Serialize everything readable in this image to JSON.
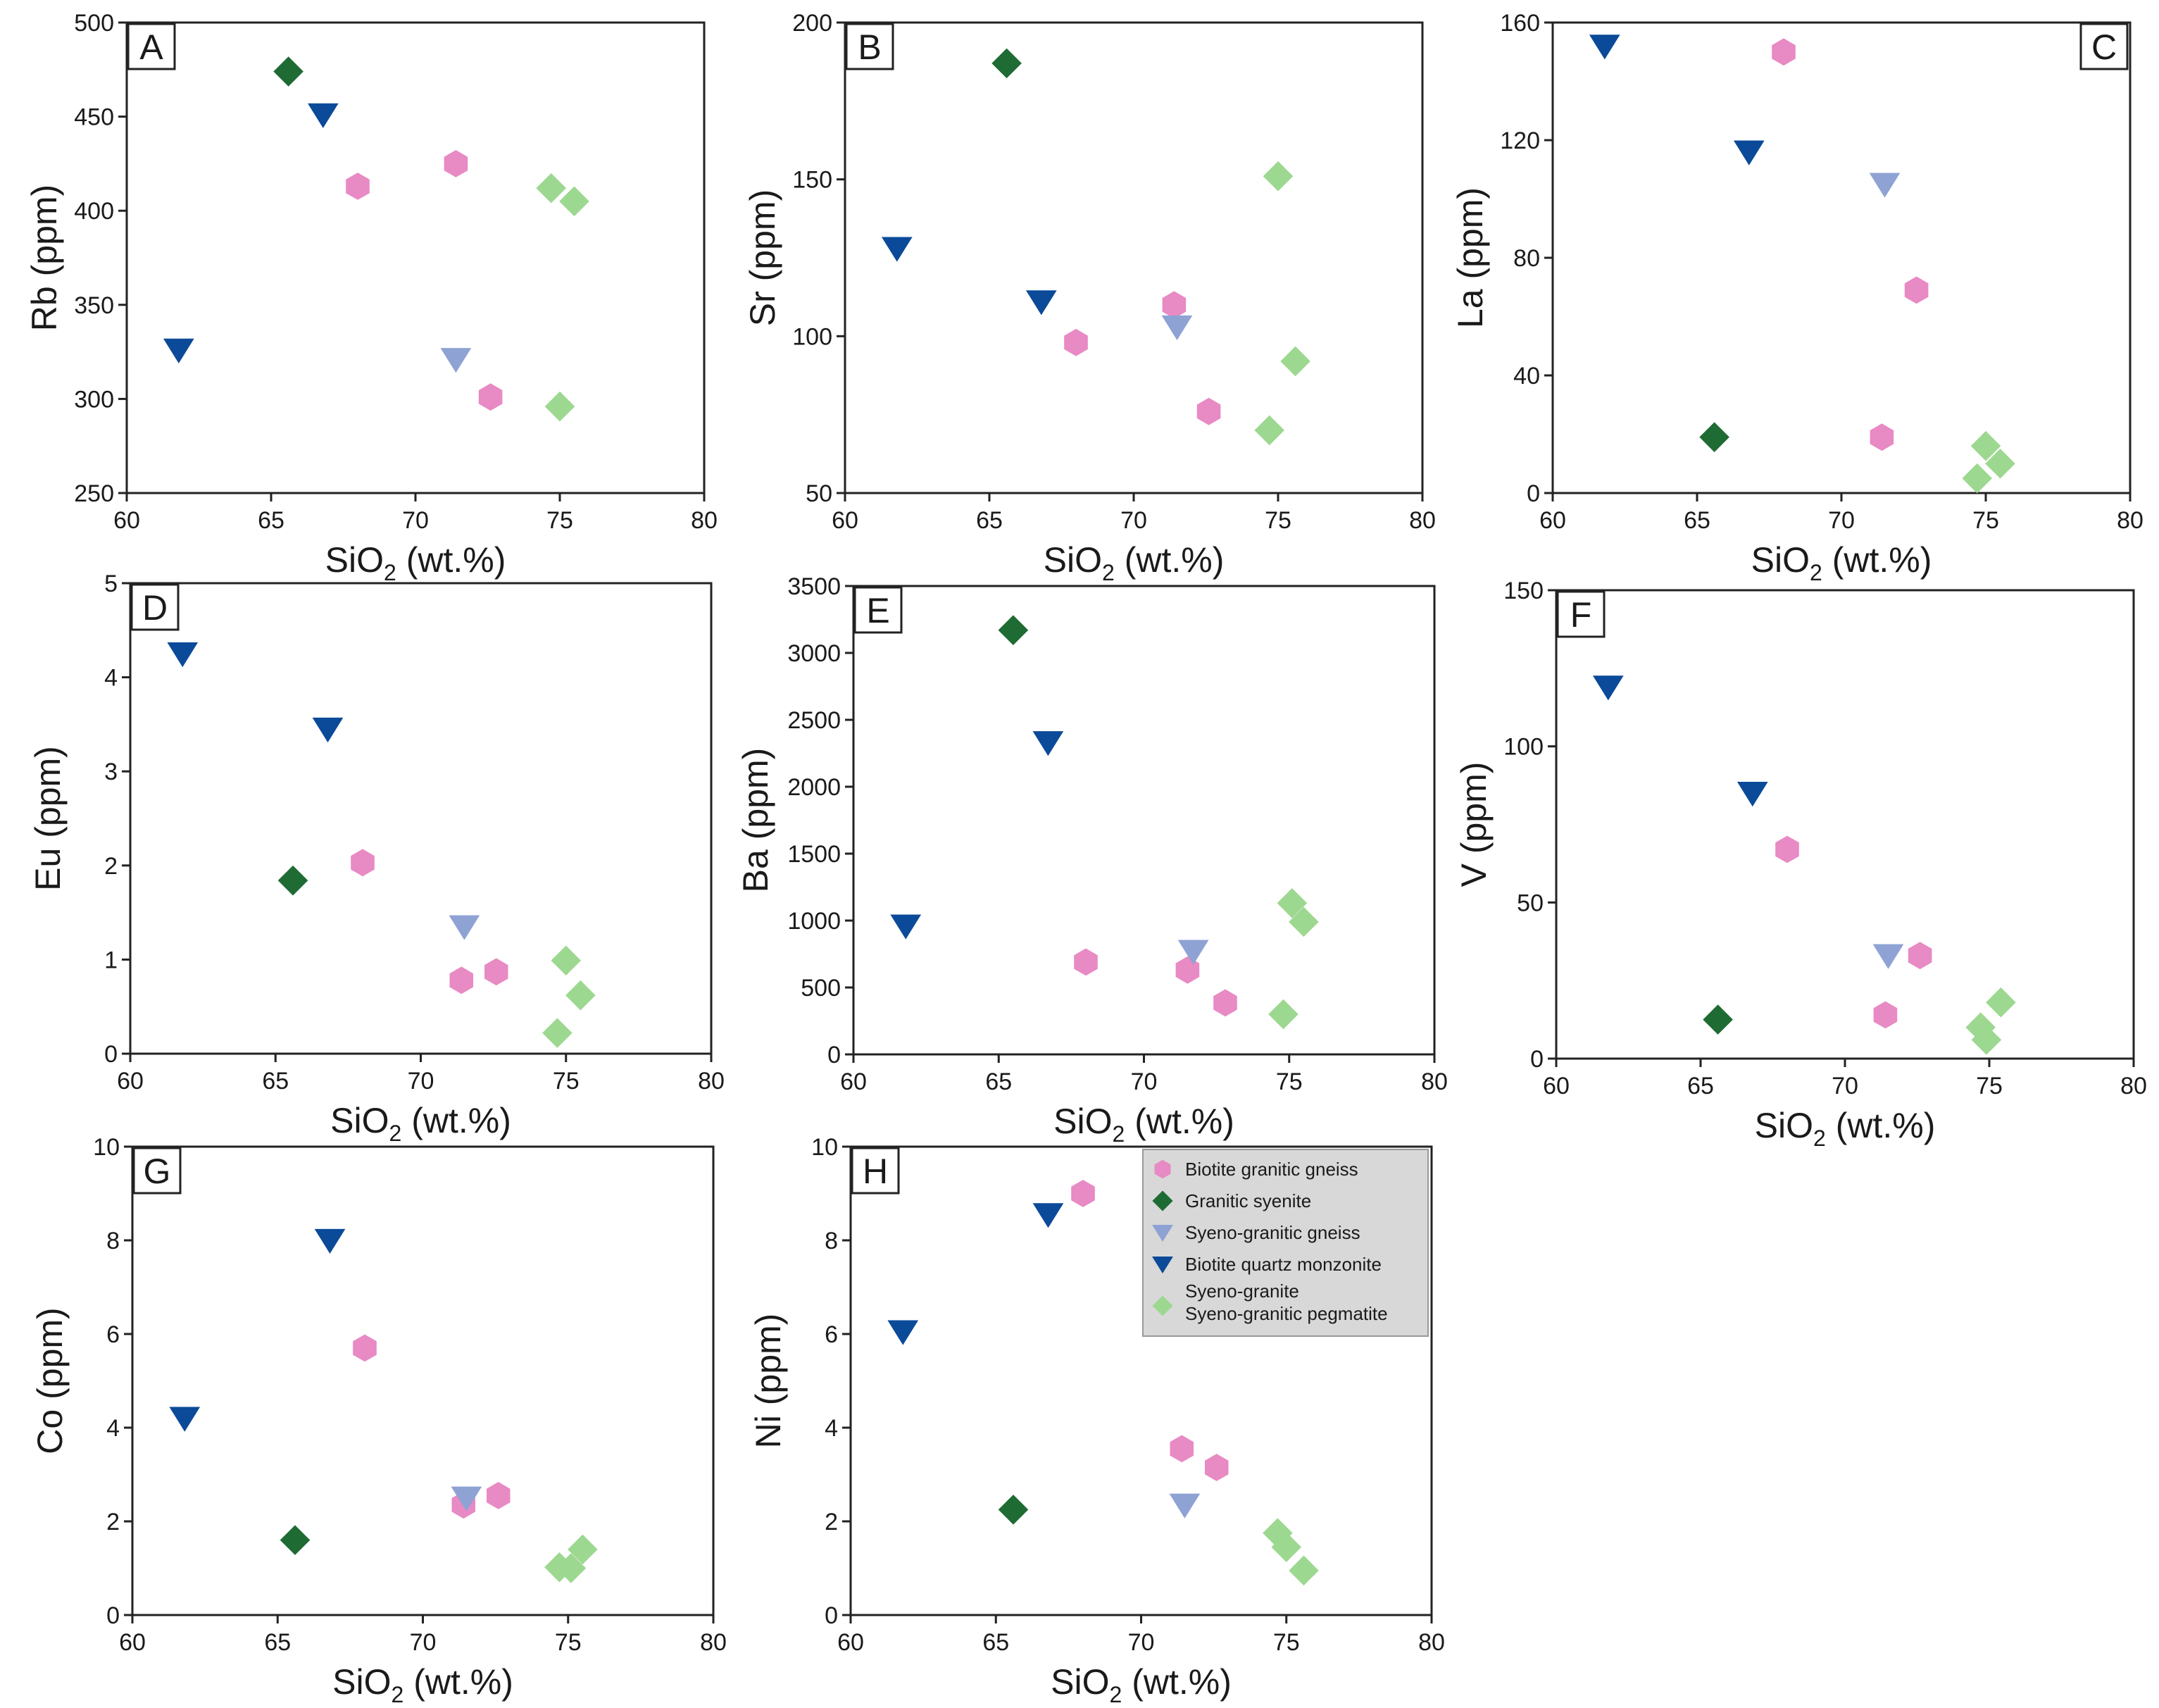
{
  "colors": {
    "biotite_granitic_gneiss": "#e88ac4",
    "granitic_syenite": "#1e6b33",
    "syeno_granitic_gneiss": "#8fa2d4",
    "biotite_quartz_monzonite": "#0b4a99",
    "syeno_granite": "#9dd890"
  },
  "legend": {
    "items": [
      {
        "key": "biotite_granitic_gneiss",
        "marker": "hexagon",
        "lines": [
          "Biotite granitic gneiss"
        ]
      },
      {
        "key": "granitic_syenite",
        "marker": "diamond",
        "lines": [
          "Granitic syenite"
        ]
      },
      {
        "key": "syeno_granitic_gneiss",
        "marker": "triangle-down",
        "lines": [
          "Syeno-granitic gneiss"
        ]
      },
      {
        "key": "biotite_quartz_monzonite",
        "marker": "triangle-down",
        "lines": [
          "Biotite quartz monzonite"
        ]
      },
      {
        "key": "syeno_granite",
        "marker": "diamond",
        "lines": [
          "Syeno-granite",
          "Syeno-granitic pegmatite"
        ]
      }
    ]
  },
  "chart_data": [
    {
      "panel": "A",
      "type": "scatter",
      "xlabel": "SiO2 (wt.%)",
      "ylabel": "Rb (ppm)",
      "xlim": [
        60,
        80
      ],
      "ylim": [
        250,
        500
      ],
      "xticks": [
        60,
        65,
        70,
        75,
        80
      ],
      "yticks": [
        250,
        300,
        350,
        400,
        450,
        500
      ],
      "series": [
        {
          "key": "biotite_granitic_gneiss",
          "points": [
            [
              68,
              413
            ],
            [
              71.4,
              425
            ],
            [
              72.6,
              301
            ]
          ]
        },
        {
          "key": "granitic_syenite",
          "points": [
            [
              65.6,
              474
            ]
          ]
        },
        {
          "key": "syeno_granitic_gneiss",
          "points": [
            [
              71.4,
              321
            ]
          ]
        },
        {
          "key": "biotite_quartz_monzonite",
          "points": [
            [
              61.8,
              326
            ],
            [
              66.8,
              451
            ]
          ]
        },
        {
          "key": "syeno_granite",
          "points": [
            [
              74.7,
              412
            ],
            [
              75.5,
              405
            ],
            [
              75,
              296
            ]
          ]
        }
      ]
    },
    {
      "panel": "B",
      "type": "scatter",
      "xlabel": "SiO2 (wt.%)",
      "ylabel": "Sr (ppm)",
      "xlim": [
        60,
        80
      ],
      "ylim": [
        50,
        200
      ],
      "xticks": [
        60,
        65,
        70,
        75,
        80
      ],
      "yticks": [
        50,
        100,
        150,
        200
      ],
      "series": [
        {
          "key": "biotite_granitic_gneiss",
          "points": [
            [
              68,
              98
            ],
            [
              71.4,
              110
            ],
            [
              72.6,
              76
            ]
          ]
        },
        {
          "key": "granitic_syenite",
          "points": [
            [
              65.6,
              187
            ]
          ]
        },
        {
          "key": "syeno_granitic_gneiss",
          "points": [
            [
              71.5,
              103
            ]
          ]
        },
        {
          "key": "biotite_quartz_monzonite",
          "points": [
            [
              61.8,
              128
            ],
            [
              66.8,
              111
            ]
          ]
        },
        {
          "key": "syeno_granite",
          "points": [
            [
              75,
              151
            ],
            [
              75.6,
              92
            ],
            [
              74.7,
              70
            ]
          ]
        }
      ]
    },
    {
      "panel": "C",
      "type": "scatter",
      "xlabel": "SiO2 (wt.%)",
      "ylabel": "La (ppm)",
      "xlim": [
        60,
        80
      ],
      "ylim": [
        0,
        160
      ],
      "xticks": [
        60,
        65,
        70,
        75,
        80
      ],
      "yticks": [
        0,
        40,
        80,
        120,
        160
      ],
      "series": [
        {
          "key": "biotite_granitic_gneiss",
          "points": [
            [
              68,
              150
            ],
            [
              72.6,
              69
            ],
            [
              71.4,
              19
            ]
          ]
        },
        {
          "key": "granitic_syenite",
          "points": [
            [
              65.6,
              19
            ]
          ]
        },
        {
          "key": "syeno_granitic_gneiss",
          "points": [
            [
              71.5,
              105
            ]
          ]
        },
        {
          "key": "biotite_quartz_monzonite",
          "points": [
            [
              61.8,
              152
            ],
            [
              66.8,
              116
            ]
          ]
        },
        {
          "key": "syeno_granite",
          "points": [
            [
              75,
              16
            ],
            [
              75.5,
              10
            ],
            [
              74.7,
              5
            ]
          ]
        }
      ]
    },
    {
      "panel": "D",
      "type": "scatter",
      "xlabel": "SiO2 (wt.%)",
      "ylabel": "Eu (ppm)",
      "xlim": [
        60,
        80
      ],
      "ylim": [
        0,
        5
      ],
      "xticks": [
        60,
        65,
        70,
        75,
        80
      ],
      "yticks": [
        0,
        1,
        2,
        3,
        4,
        5
      ],
      "series": [
        {
          "key": "biotite_granitic_gneiss",
          "points": [
            [
              68,
              2.03
            ],
            [
              71.4,
              0.78
            ],
            [
              72.6,
              0.87
            ]
          ]
        },
        {
          "key": "granitic_syenite",
          "points": [
            [
              65.6,
              1.84
            ]
          ]
        },
        {
          "key": "syeno_granitic_gneiss",
          "points": [
            [
              71.5,
              1.35
            ]
          ]
        },
        {
          "key": "biotite_quartz_monzonite",
          "points": [
            [
              61.8,
              4.25
            ],
            [
              66.8,
              3.45
            ]
          ]
        },
        {
          "key": "syeno_granite",
          "points": [
            [
              75,
              0.99
            ],
            [
              75.5,
              0.62
            ],
            [
              74.7,
              0.22
            ]
          ]
        }
      ]
    },
    {
      "panel": "E",
      "type": "scatter",
      "xlabel": "SiO2 (wt.%)",
      "ylabel": "Ba (ppm)",
      "xlim": [
        60,
        80
      ],
      "ylim": [
        0,
        3500
      ],
      "xticks": [
        60,
        65,
        70,
        75,
        80
      ],
      "yticks": [
        0,
        500,
        1000,
        1500,
        2000,
        2500,
        3000,
        3500
      ],
      "series": [
        {
          "key": "biotite_granitic_gneiss",
          "points": [
            [
              68,
              690
            ],
            [
              71.5,
              630
            ],
            [
              72.8,
              385
            ]
          ]
        },
        {
          "key": "granitic_syenite",
          "points": [
            [
              65.5,
              3170
            ]
          ]
        },
        {
          "key": "syeno_granitic_gneiss",
          "points": [
            [
              71.7,
              770
            ]
          ]
        },
        {
          "key": "biotite_quartz_monzonite",
          "points": [
            [
              61.8,
              960
            ],
            [
              66.7,
              2330
            ]
          ]
        },
        {
          "key": "syeno_granite",
          "points": [
            [
              75.1,
              1130
            ],
            [
              75.5,
              990
            ],
            [
              74.8,
              300
            ]
          ]
        }
      ]
    },
    {
      "panel": "F",
      "type": "scatter",
      "xlabel": "SiO2 (wt.%)",
      "ylabel": "V (ppm)",
      "xlim": [
        60,
        80
      ],
      "ylim": [
        0,
        150
      ],
      "xticks": [
        60,
        65,
        70,
        75,
        80
      ],
      "yticks": [
        0,
        50,
        100,
        150
      ],
      "series": [
        {
          "key": "biotite_granitic_gneiss",
          "points": [
            [
              68,
              67
            ],
            [
              72.6,
              33
            ],
            [
              71.4,
              14
            ]
          ]
        },
        {
          "key": "granitic_syenite",
          "points": [
            [
              65.6,
              12.5
            ]
          ]
        },
        {
          "key": "syeno_granitic_gneiss",
          "points": [
            [
              71.5,
              33
            ]
          ]
        },
        {
          "key": "biotite_quartz_monzonite",
          "points": [
            [
              61.8,
              119
            ],
            [
              66.8,
              85
            ]
          ]
        },
        {
          "key": "syeno_granite",
          "points": [
            [
              75.4,
              18
            ],
            [
              74.7,
              10
            ],
            [
              74.9,
              6
            ]
          ]
        }
      ]
    },
    {
      "panel": "G",
      "type": "scatter",
      "xlabel": "SiO2 (wt.%)",
      "ylabel": "Co (ppm)",
      "xlim": [
        60,
        80
      ],
      "ylim": [
        0,
        10
      ],
      "xticks": [
        60,
        65,
        70,
        75,
        80
      ],
      "yticks": [
        0,
        2,
        4,
        6,
        8,
        10
      ],
      "series": [
        {
          "key": "biotite_granitic_gneiss",
          "points": [
            [
              68,
              5.7
            ],
            [
              71.4,
              2.35
            ],
            [
              72.6,
              2.55
            ]
          ]
        },
        {
          "key": "granitic_syenite",
          "points": [
            [
              65.6,
              1.6
            ]
          ]
        },
        {
          "key": "syeno_granitic_gneiss",
          "points": [
            [
              71.5,
              2.5
            ]
          ]
        },
        {
          "key": "biotite_quartz_monzonite",
          "points": [
            [
              61.8,
              4.2
            ],
            [
              66.8,
              8.0
            ]
          ]
        },
        {
          "key": "syeno_granite",
          "points": [
            [
              75.5,
              1.4
            ],
            [
              74.7,
              1.02
            ],
            [
              75.1,
              1.0
            ]
          ]
        }
      ]
    },
    {
      "panel": "H",
      "type": "scatter",
      "xlabel": "SiO2 (wt.%)",
      "ylabel": "Ni (ppm)",
      "xlim": [
        60,
        80
      ],
      "ylim": [
        0,
        10
      ],
      "xticks": [
        60,
        65,
        70,
        75,
        80
      ],
      "yticks": [
        0,
        2,
        4,
        6,
        8,
        10
      ],
      "series": [
        {
          "key": "biotite_granitic_gneiss",
          "points": [
            [
              68,
              9.0
            ],
            [
              71.4,
              3.55
            ],
            [
              72.6,
              3.15
            ]
          ]
        },
        {
          "key": "granitic_syenite",
          "points": [
            [
              65.6,
              2.25
            ]
          ]
        },
        {
          "key": "syeno_granitic_gneiss",
          "points": [
            [
              71.5,
              2.35
            ]
          ]
        },
        {
          "key": "biotite_quartz_monzonite",
          "points": [
            [
              61.8,
              6.05
            ],
            [
              66.8,
              8.55
            ]
          ]
        },
        {
          "key": "syeno_granite",
          "points": [
            [
              74.7,
              1.75
            ],
            [
              75,
              1.45
            ],
            [
              75.6,
              0.95
            ]
          ]
        }
      ]
    }
  ]
}
